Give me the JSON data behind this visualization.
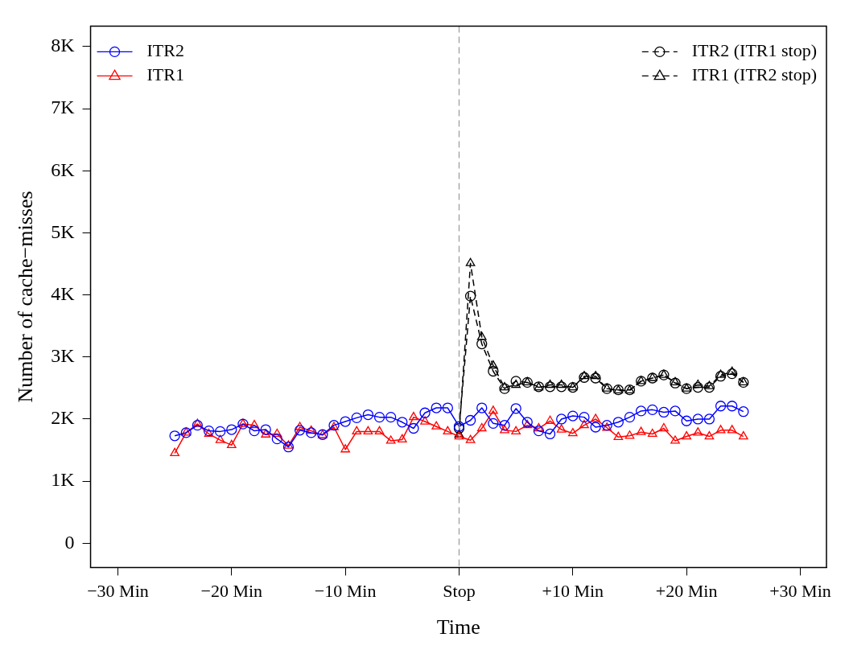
{
  "chart_data": {
    "type": "line",
    "xlabel": "Time",
    "ylabel": "Number of cache−misses",
    "xlim": [
      -32.4,
      32.3
    ],
    "xticks": [
      {
        "value": -30,
        "label": "−30 Min"
      },
      {
        "value": -20,
        "label": "−20 Min"
      },
      {
        "value": -10,
        "label": "−10 Min"
      },
      {
        "value": 0,
        "label": "Stop"
      },
      {
        "value": 10,
        "label": "+10 Min"
      },
      {
        "value": 20,
        "label": "+20 Min"
      },
      {
        "value": 30,
        "label": "+30 Min"
      }
    ],
    "ylim": [
      -390,
      8330
    ],
    "yticks": [
      0,
      {
        "value": 1000,
        "label": "1K"
      },
      {
        "value": 2000,
        "label": "2K"
      },
      {
        "value": 3000,
        "label": "3K"
      },
      {
        "value": 4000,
        "label": "4K"
      },
      {
        "value": 5000,
        "label": "5K"
      },
      {
        "value": 6000,
        "label": "6K"
      },
      {
        "value": 7000,
        "label": "7K"
      },
      {
        "value": 8000,
        "label": "8K"
      }
    ],
    "grid": false,
    "legend": "top",
    "ref_lines": [
      {
        "axis": "x",
        "value": 0,
        "color": "#999999",
        "line_style": "dashed"
      }
    ],
    "series": [
      {
        "name": "ITR2",
        "color": "#0000ff",
        "marker": "circle",
        "line_style": "solid",
        "x": [
          -25,
          -24,
          -23,
          -22,
          -21,
          -20,
          -19,
          -18,
          -17,
          -16,
          -15,
          -14,
          -13,
          -12,
          -11,
          -10,
          -9,
          -8,
          -7,
          -6,
          -5,
          -4,
          -3,
          -2,
          -1,
          0,
          1,
          2,
          3,
          4,
          5,
          6,
          7,
          8,
          9,
          10,
          11,
          12,
          13,
          14,
          15,
          16,
          17,
          18,
          19,
          20,
          21,
          22,
          23,
          24,
          25
        ],
        "values": [
          1730,
          1780,
          1900,
          1810,
          1800,
          1830,
          1920,
          1810,
          1830,
          1680,
          1550,
          1820,
          1780,
          1750,
          1900,
          1960,
          2020,
          2070,
          2030,
          2030,
          1950,
          1850,
          2100,
          2180,
          2180,
          1880,
          1980,
          2180,
          1930,
          1900,
          2170,
          1950,
          1810,
          1760,
          2000,
          2050,
          2030,
          1870,
          1900,
          1950,
          2030,
          2130,
          2150,
          2110,
          2130,
          1970,
          2000,
          2000,
          2210,
          2210,
          2120
        ]
      },
      {
        "name": "ITR1",
        "color": "#ff0000",
        "marker": "triangle",
        "line_style": "solid",
        "x": [
          -25,
          -24,
          -23,
          -22,
          -21,
          -20,
          -19,
          -18,
          -17,
          -16,
          -15,
          -14,
          -13,
          -12,
          -11,
          -10,
          -9,
          -8,
          -7,
          -6,
          -5,
          -4,
          -3,
          -2,
          -1,
          0,
          1,
          2,
          3,
          4,
          5,
          6,
          7,
          8,
          9,
          10,
          11,
          12,
          13,
          14,
          15,
          16,
          17,
          18,
          19,
          20,
          21,
          22,
          23,
          24,
          25
        ],
        "values": [
          1450,
          1780,
          1920,
          1760,
          1660,
          1580,
          1920,
          1900,
          1750,
          1760,
          1570,
          1870,
          1810,
          1740,
          1870,
          1510,
          1800,
          1800,
          1800,
          1650,
          1670,
          2030,
          1960,
          1880,
          1800,
          1720,
          1660,
          1850,
          2130,
          1820,
          1800,
          1900,
          1850,
          1970,
          1830,
          1770,
          1900,
          2000,
          1860,
          1710,
          1730,
          1790,
          1760,
          1850,
          1650,
          1720,
          1780,
          1720,
          1820,
          1820,
          1720
        ]
      },
      {
        "name": "ITR2 (ITR1 stop)",
        "color": "#000000",
        "marker": "circle",
        "line_style": "dashed",
        "x": [
          0,
          1,
          2,
          3,
          4,
          5,
          6,
          7,
          8,
          9,
          10,
          11,
          12,
          13,
          14,
          15,
          16,
          17,
          18,
          19,
          20,
          21,
          22,
          23,
          24,
          25
        ],
        "values": [
          1850,
          3980,
          3210,
          2770,
          2490,
          2610,
          2590,
          2520,
          2520,
          2520,
          2510,
          2670,
          2660,
          2490,
          2470,
          2470,
          2610,
          2660,
          2710,
          2580,
          2490,
          2510,
          2510,
          2690,
          2730,
          2590
        ]
      },
      {
        "name": "ITR1 (ITR2 stop)",
        "color": "#000000",
        "marker": "triangle",
        "line_style": "dashed",
        "x": [
          0,
          1,
          2,
          3,
          4,
          5,
          6,
          7,
          8,
          9,
          10,
          11,
          12,
          13,
          14,
          15,
          16,
          17,
          18,
          19,
          20,
          21,
          22,
          23,
          24,
          25
        ],
        "values": [
          1750,
          4510,
          3320,
          2860,
          2510,
          2550,
          2590,
          2510,
          2550,
          2550,
          2510,
          2690,
          2690,
          2490,
          2460,
          2460,
          2610,
          2660,
          2710,
          2590,
          2490,
          2550,
          2530,
          2710,
          2760,
          2590
        ]
      }
    ]
  }
}
